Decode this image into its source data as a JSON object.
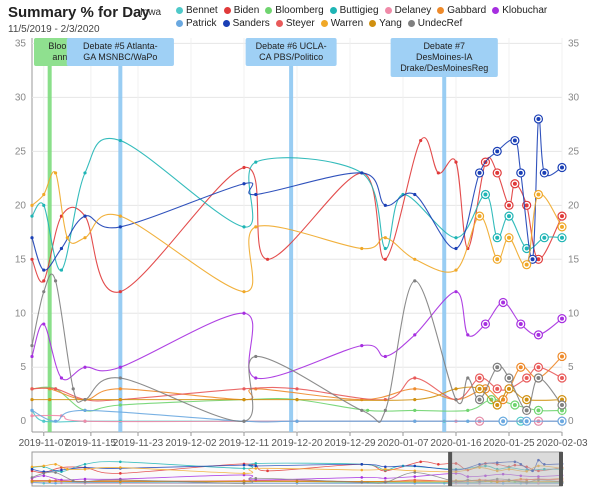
{
  "header": {
    "title": "Summary % for Day",
    "date_range": "11/5/2019 - 2/3/2020",
    "region": "Iowa"
  },
  "chart_data": {
    "type": "line",
    "title": "Summary % for Day",
    "ylim": [
      -1,
      35.5
    ],
    "yticks": [
      0,
      5,
      10,
      15,
      20,
      25,
      30,
      35
    ],
    "xlim": [
      "2019-11-05",
      "2020-02-03"
    ],
    "xticks": [
      "2019-11-07",
      "2019-11-15",
      "2019-11-23",
      "2019-12-02",
      "2019-12-11",
      "2019-12-20",
      "2019-12-29",
      "2020-01-07",
      "2020-01-16",
      "2020-01-25",
      "2020-02-03"
    ],
    "grid": true,
    "legend_placement": "top",
    "annotations": [
      {
        "date": "2019-11-08",
        "lines": [
          "Bloomberg floats",
          "announcement"
        ],
        "color": "#7ddc7d",
        "box": "#8fe08f"
      },
      {
        "date": "2019-11-20",
        "lines": [
          "Debate #5 Atlanta-",
          "GA MSNBC/WaPo"
        ],
        "color": "#8ec8f2",
        "box": "#9fd0f5"
      },
      {
        "date": "2019-12-19",
        "lines": [
          "Debate #6 UCLA-",
          "CA PBS/Politico"
        ],
        "color": "#8ec8f2",
        "box": "#9fd0f5"
      },
      {
        "date": "2020-01-14",
        "lines": [
          "Debate #7",
          "DesMoines-IA",
          "Drake/DesMoinesReg"
        ],
        "color": "#8ec8f2",
        "box": "#9fd0f5"
      }
    ],
    "series": [
      {
        "name": "Bennet",
        "color": "#4fc9c9",
        "points": [
          [
            "2019-11-05",
            1
          ],
          [
            "2019-11-07",
            0
          ],
          [
            "2019-11-14",
            0
          ],
          [
            "2019-11-20",
            0
          ],
          [
            "2019-12-11",
            0
          ],
          [
            "2019-12-20",
            0
          ],
          [
            "2020-01-09",
            0
          ],
          [
            "2020-01-14",
            0
          ],
          [
            "2020-01-18",
            0
          ],
          [
            "2020-01-20",
            0
          ],
          [
            "2020-01-24",
            0
          ],
          [
            "2020-01-27",
            0
          ],
          [
            "2020-01-30",
            0
          ],
          [
            "2020-02-03",
            0
          ]
        ]
      },
      {
        "name": "Biden",
        "color": "#e03a3a",
        "points": [
          [
            "2019-11-05",
            15
          ],
          [
            "2019-11-07",
            13
          ],
          [
            "2019-11-10",
            19
          ],
          [
            "2019-11-14",
            19
          ],
          [
            "2019-11-20",
            12
          ],
          [
            "2019-12-11",
            23.5
          ],
          [
            "2019-12-15",
            15
          ],
          [
            "2019-12-31",
            23
          ],
          [
            "2020-01-04",
            15
          ],
          [
            "2020-01-10",
            26
          ],
          [
            "2020-01-13",
            23
          ],
          [
            "2020-01-16",
            24
          ],
          [
            "2020-01-18",
            16
          ],
          [
            "2020-01-21",
            24
          ],
          [
            "2020-01-23",
            23
          ],
          [
            "2020-01-25",
            20
          ],
          [
            "2020-01-26",
            22
          ],
          [
            "2020-01-28",
            20
          ],
          [
            "2020-01-30",
            15
          ],
          [
            "2020-02-03",
            19
          ]
        ]
      },
      {
        "name": "Bloomberg",
        "color": "#6fd46f",
        "points": [
          [
            "2019-11-05",
            3
          ],
          [
            "2019-11-09",
            3
          ],
          [
            "2019-11-14",
            1
          ],
          [
            "2019-11-20",
            1.5
          ],
          [
            "2019-12-11",
            2
          ],
          [
            "2019-12-20",
            2
          ],
          [
            "2020-01-01",
            1
          ],
          [
            "2020-01-09",
            1
          ],
          [
            "2020-01-18",
            1
          ],
          [
            "2020-01-22",
            2
          ],
          [
            "2020-01-26",
            1.5
          ],
          [
            "2020-01-30",
            1
          ],
          [
            "2020-02-03",
            1
          ]
        ]
      },
      {
        "name": "Buttigieg",
        "color": "#1fb5b5",
        "points": [
          [
            "2019-11-05",
            19
          ],
          [
            "2019-11-07",
            20
          ],
          [
            "2019-11-10",
            14
          ],
          [
            "2019-11-14",
            23
          ],
          [
            "2019-11-20",
            26
          ],
          [
            "2019-12-11",
            18
          ],
          [
            "2019-12-13",
            24
          ],
          [
            "2019-12-31",
            23
          ],
          [
            "2020-01-04",
            16
          ],
          [
            "2020-01-07",
            21
          ],
          [
            "2020-01-16",
            17
          ],
          [
            "2020-01-21",
            21
          ],
          [
            "2020-01-23",
            17
          ],
          [
            "2020-01-25",
            19
          ],
          [
            "2020-01-28",
            16
          ],
          [
            "2020-01-31",
            17
          ],
          [
            "2020-02-03",
            17
          ]
        ]
      },
      {
        "name": "Delaney",
        "color": "#f08aa8",
        "points": [
          [
            "2019-11-05",
            0.5
          ],
          [
            "2019-11-10",
            0.5
          ],
          [
            "2019-11-14",
            0
          ],
          [
            "2019-12-11",
            0
          ],
          [
            "2019-12-20",
            0
          ],
          [
            "2020-01-09",
            0
          ],
          [
            "2020-01-16",
            0
          ],
          [
            "2020-01-20",
            0
          ],
          [
            "2020-01-30",
            0
          ],
          [
            "2020-02-03",
            0
          ]
        ]
      },
      {
        "name": "Gabbard",
        "color": "#ee8a2a",
        "points": [
          [
            "2019-11-05",
            3
          ],
          [
            "2019-11-08",
            3
          ],
          [
            "2019-11-14",
            2
          ],
          [
            "2019-11-20",
            3
          ],
          [
            "2019-12-11",
            2
          ],
          [
            "2019-12-13",
            3
          ],
          [
            "2019-12-31",
            2
          ],
          [
            "2020-01-09",
            3
          ],
          [
            "2020-01-16",
            2
          ],
          [
            "2020-01-21",
            3
          ],
          [
            "2020-01-24",
            2
          ],
          [
            "2020-01-27",
            5
          ],
          [
            "2020-01-30",
            4
          ],
          [
            "2020-02-03",
            6
          ]
        ]
      },
      {
        "name": "Klobuchar",
        "color": "#a62ee0",
        "points": [
          [
            "2019-11-05",
            6
          ],
          [
            "2019-11-07",
            9
          ],
          [
            "2019-11-10",
            4
          ],
          [
            "2019-11-14",
            5
          ],
          [
            "2019-11-20",
            5
          ],
          [
            "2019-12-11",
            10
          ],
          [
            "2019-12-13",
            4
          ],
          [
            "2019-12-31",
            7
          ],
          [
            "2020-01-04",
            6
          ],
          [
            "2020-01-09",
            8
          ],
          [
            "2020-01-16",
            12
          ],
          [
            "2020-01-18",
            8
          ],
          [
            "2020-01-21",
            9
          ],
          [
            "2020-01-24",
            11
          ],
          [
            "2020-01-27",
            9
          ],
          [
            "2020-01-30",
            8
          ],
          [
            "2020-02-03",
            9.5
          ]
        ]
      },
      {
        "name": "Patrick",
        "color": "#6aa8e0",
        "points": [
          [
            "2019-11-05",
            1
          ],
          [
            "2019-11-09",
            0
          ],
          [
            "2019-11-14",
            1
          ],
          [
            "2019-12-11",
            0
          ],
          [
            "2019-12-20",
            0
          ],
          [
            "2020-01-09",
            0
          ],
          [
            "2020-01-18",
            0
          ],
          [
            "2020-01-24",
            0
          ],
          [
            "2020-01-28",
            0
          ],
          [
            "2020-02-03",
            0
          ]
        ]
      },
      {
        "name": "Sanders",
        "color": "#1a3fb5",
        "points": [
          [
            "2019-11-05",
            17
          ],
          [
            "2019-11-07",
            14
          ],
          [
            "2019-11-10",
            16
          ],
          [
            "2019-11-14",
            19
          ],
          [
            "2019-11-20",
            18
          ],
          [
            "2019-12-11",
            22
          ],
          [
            "2019-12-13",
            21
          ],
          [
            "2019-12-31",
            23
          ],
          [
            "2020-01-04",
            20
          ],
          [
            "2020-01-09",
            21
          ],
          [
            "2020-01-16",
            16
          ],
          [
            "2020-01-20",
            23
          ],
          [
            "2020-01-23",
            25
          ],
          [
            "2020-01-26",
            26
          ],
          [
            "2020-01-27",
            23
          ],
          [
            "2020-01-29",
            15
          ],
          [
            "2020-01-30",
            28
          ],
          [
            "2020-01-31",
            23
          ],
          [
            "2020-02-03",
            23.5
          ]
        ]
      },
      {
        "name": "Steyer",
        "color": "#e85a5a",
        "points": [
          [
            "2019-11-05",
            3
          ],
          [
            "2019-11-09",
            3
          ],
          [
            "2019-11-14",
            2
          ],
          [
            "2019-11-20",
            2
          ],
          [
            "2019-12-11",
            3
          ],
          [
            "2019-12-20",
            3
          ],
          [
            "2020-01-04",
            2
          ],
          [
            "2020-01-09",
            4
          ],
          [
            "2020-01-16",
            2
          ],
          [
            "2020-01-20",
            4
          ],
          [
            "2020-01-23",
            3
          ],
          [
            "2020-01-25",
            3
          ],
          [
            "2020-01-28",
            4
          ],
          [
            "2020-01-30",
            5
          ],
          [
            "2020-02-03",
            4
          ]
        ]
      },
      {
        "name": "Warren",
        "color": "#f0a828",
        "points": [
          [
            "2019-11-05",
            20
          ],
          [
            "2019-11-07",
            21
          ],
          [
            "2019-11-09",
            23
          ],
          [
            "2019-11-11",
            17
          ],
          [
            "2019-11-14",
            17
          ],
          [
            "2019-11-20",
            19
          ],
          [
            "2019-12-11",
            12
          ],
          [
            "2019-12-13",
            18
          ],
          [
            "2019-12-31",
            16
          ],
          [
            "2020-01-04",
            17
          ],
          [
            "2020-01-09",
            15
          ],
          [
            "2020-01-16",
            14
          ],
          [
            "2020-01-20",
            19
          ],
          [
            "2020-01-23",
            15
          ],
          [
            "2020-01-25",
            17
          ],
          [
            "2020-01-28",
            14.5
          ],
          [
            "2020-01-30",
            21
          ],
          [
            "2020-02-03",
            18
          ]
        ]
      },
      {
        "name": "Yang",
        "color": "#d09010",
        "points": [
          [
            "2019-11-05",
            2
          ],
          [
            "2019-11-08",
            2
          ],
          [
            "2019-11-14",
            2
          ],
          [
            "2019-11-20",
            2
          ],
          [
            "2019-12-11",
            2
          ],
          [
            "2019-12-20",
            2
          ],
          [
            "2020-01-09",
            2
          ],
          [
            "2020-01-16",
            3
          ],
          [
            "2020-01-20",
            3
          ],
          [
            "2020-01-23",
            1.5
          ],
          [
            "2020-01-25",
            3
          ],
          [
            "2020-01-28",
            2
          ],
          [
            "2020-02-03",
            2
          ]
        ]
      },
      {
        "name": "UndecRef",
        "color": "#808080",
        "points": [
          [
            "2019-11-05",
            7
          ],
          [
            "2019-11-07",
            12
          ],
          [
            "2019-11-09",
            13
          ],
          [
            "2019-11-12",
            3
          ],
          [
            "2019-11-14",
            2
          ],
          [
            "2019-11-20",
            4
          ],
          [
            "2019-12-11",
            0
          ],
          [
            "2019-12-13",
            6
          ],
          [
            "2019-12-31",
            1
          ],
          [
            "2020-01-04",
            1
          ],
          [
            "2020-01-09",
            13
          ],
          [
            "2020-01-16",
            2
          ],
          [
            "2020-01-18",
            4
          ],
          [
            "2020-01-20",
            2
          ],
          [
            "2020-01-23",
            5
          ],
          [
            "2020-01-25",
            4
          ],
          [
            "2020-01-28",
            1
          ],
          [
            "2020-01-30",
            4
          ],
          [
            "2020-02-03",
            1.5
          ]
        ]
      }
    ]
  }
}
